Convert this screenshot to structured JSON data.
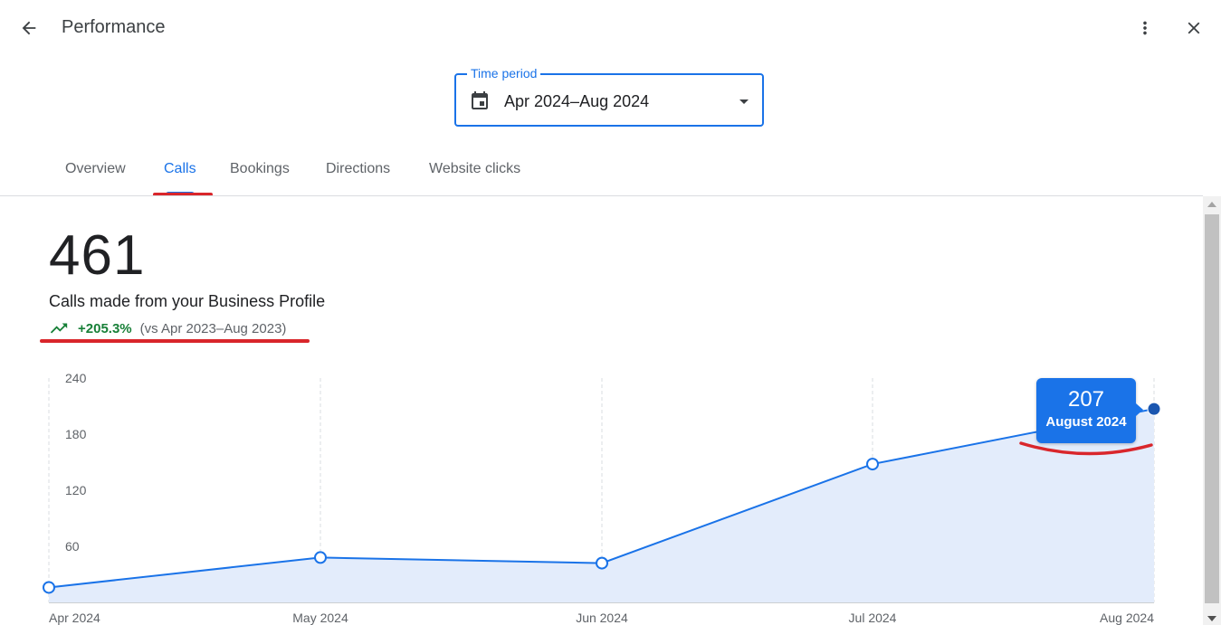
{
  "header": {
    "title": "Performance",
    "back_icon": "arrow-back-icon",
    "more_icon": "more-vert-icon",
    "close_icon": "close-icon"
  },
  "time_period": {
    "label": "Time period",
    "value": "Apr 2024–Aug 2024",
    "icon": "calendar-icon"
  },
  "tabs": [
    {
      "label": "Overview",
      "active": false
    },
    {
      "label": "Calls",
      "active": true
    },
    {
      "label": "Bookings",
      "active": false
    },
    {
      "label": "Directions",
      "active": false
    },
    {
      "label": "Website clicks",
      "active": false
    }
  ],
  "metric": {
    "value": "461",
    "description": "Calls made from your Business Profile",
    "change": "+205.3%",
    "comparison": "(vs Apr 2023–Aug 2023)"
  },
  "tooltip": {
    "value": "207",
    "label": "August 2024"
  },
  "colors": {
    "accent": "#1a73e8",
    "positive": "#188038",
    "annotation": "#d9262b",
    "area_fill": "#e3ecfb"
  },
  "chart_data": {
    "type": "area",
    "x": [
      "Apr 2024",
      "May 2024",
      "Jun 2024",
      "Jul 2024",
      "Aug 2024"
    ],
    "series": [
      {
        "values": [
          16,
          48,
          42,
          148,
          207
        ]
      }
    ],
    "ylim": [
      0,
      240
    ],
    "yticks": [
      60,
      120,
      180,
      240
    ],
    "grid": "vertical-dashed",
    "highlight_index": 4
  }
}
